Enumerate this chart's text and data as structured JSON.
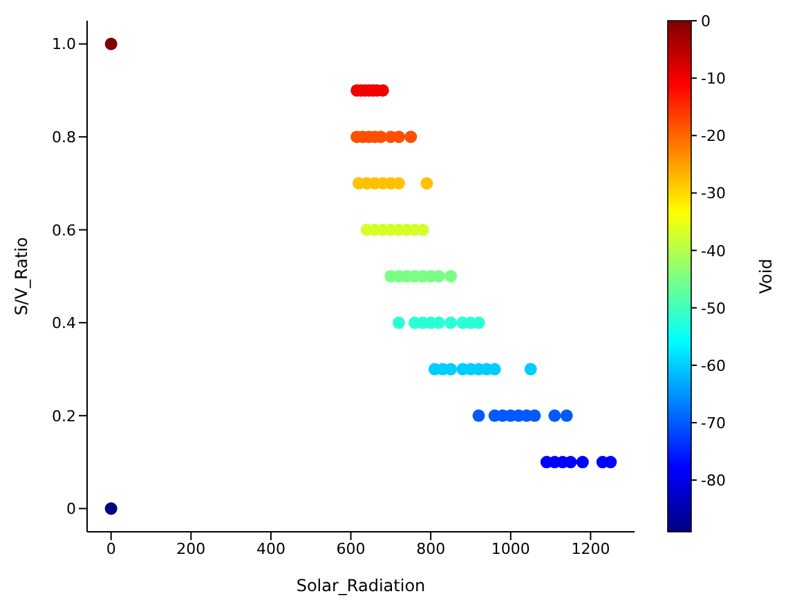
{
  "chart_data": {
    "type": "scatter",
    "xlabel": "Solar_Radiation",
    "ylabel": "S/V_Ratio",
    "clabel": "Void",
    "x": [
      0,
      0,
      615,
      625,
      635,
      645,
      655,
      665,
      680,
      615,
      630,
      645,
      660,
      675,
      700,
      720,
      750,
      620,
      640,
      660,
      680,
      700,
      720,
      790,
      640,
      660,
      680,
      700,
      720,
      740,
      760,
      780,
      700,
      720,
      740,
      760,
      780,
      800,
      820,
      850,
      720,
      760,
      780,
      800,
      820,
      850,
      880,
      900,
      920,
      810,
      830,
      850,
      880,
      900,
      920,
      940,
      960,
      1050,
      920,
      960,
      980,
      1000,
      1020,
      1040,
      1060,
      1110,
      1140,
      1090,
      1110,
      1130,
      1150,
      1180,
      1230,
      1250
    ],
    "values": [
      1.0,
      0,
      0.9,
      0.9,
      0.9,
      0.9,
      0.9,
      0.9,
      0.9,
      0.8,
      0.8,
      0.8,
      0.8,
      0.8,
      0.8,
      0.8,
      0.8,
      0.7,
      0.7,
      0.7,
      0.7,
      0.7,
      0.7,
      0.7,
      0.6,
      0.6,
      0.6,
      0.6,
      0.6,
      0.6,
      0.6,
      0.6,
      0.5,
      0.5,
      0.5,
      0.5,
      0.5,
      0.5,
      0.5,
      0.5,
      0.4,
      0.4,
      0.4,
      0.4,
      0.4,
      0.4,
      0.4,
      0.4,
      0.4,
      0.3,
      0.3,
      0.3,
      0.3,
      0.3,
      0.3,
      0.3,
      0.3,
      0.3,
      0.2,
      0.2,
      0.2,
      0.2,
      0.2,
      0.2,
      0.2,
      0.2,
      0.2,
      0.1,
      0.1,
      0.1,
      0.1,
      0.1,
      0.1,
      0.1
    ],
    "cvalues": [
      0,
      -89,
      -10,
      -10,
      -10,
      -10,
      -10,
      -10,
      -10,
      -18,
      -18,
      -18,
      -18,
      -18,
      -18,
      -18,
      -18,
      -28,
      -28,
      -28,
      -28,
      -28,
      -28,
      -28,
      -37,
      -37,
      -37,
      -37,
      -37,
      -37,
      -37,
      -37,
      -45,
      -45,
      -45,
      -45,
      -45,
      -45,
      -45,
      -45,
      -52,
      -52,
      -52,
      -52,
      -52,
      -52,
      -52,
      -52,
      -52,
      -60,
      -60,
      -60,
      -60,
      -60,
      -60,
      -60,
      -60,
      -60,
      -70,
      -70,
      -70,
      -70,
      -70,
      -70,
      -70,
      -70,
      -70,
      -78,
      -78,
      -78,
      -78,
      -78,
      -78,
      -78
    ],
    "xlim": [
      -60,
      1310
    ],
    "xticks": [
      0,
      200,
      400,
      600,
      800,
      1000,
      1200
    ],
    "ylim": [
      -0.05,
      1.05
    ],
    "yticks": [
      0.0,
      {
        "value": 0.2,
        "label": "0.2"
      },
      {
        "value": 0.4,
        "label": "0.4"
      },
      {
        "value": 0.6,
        "label": "0.6"
      },
      {
        "value": 0.8,
        "label": "0.8"
      },
      {
        "value": 1.0,
        "label": "1.0"
      }
    ],
    "clim": [
      -89,
      0
    ],
    "cticks": [
      0,
      -10,
      -20,
      -30,
      -40,
      -50,
      -60,
      -70,
      -80
    ],
    "marker": "circle",
    "grid": false
  }
}
